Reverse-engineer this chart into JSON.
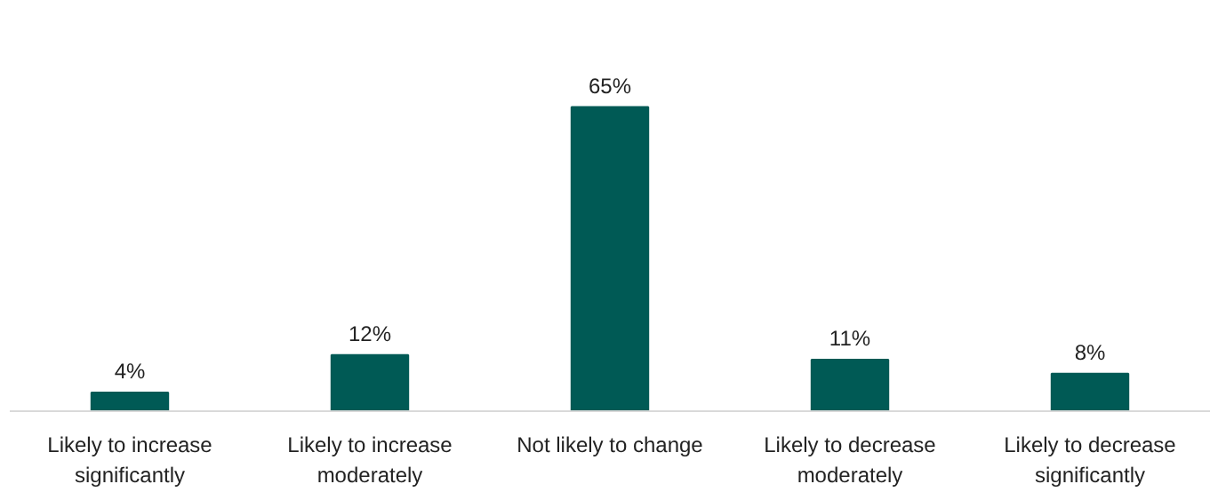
{
  "chart_data": {
    "type": "bar",
    "categories": [
      "Likely to increase significantly",
      "Likely to increase moderately",
      "Not likely to change",
      "Likely to decrease moderately",
      "Likely to decrease significantly"
    ],
    "values": [
      4,
      12,
      65,
      11,
      8
    ],
    "value_labels": [
      "4%",
      "12%",
      "65%",
      "11%",
      "8%"
    ],
    "color": "#005a55",
    "grid": false
  }
}
